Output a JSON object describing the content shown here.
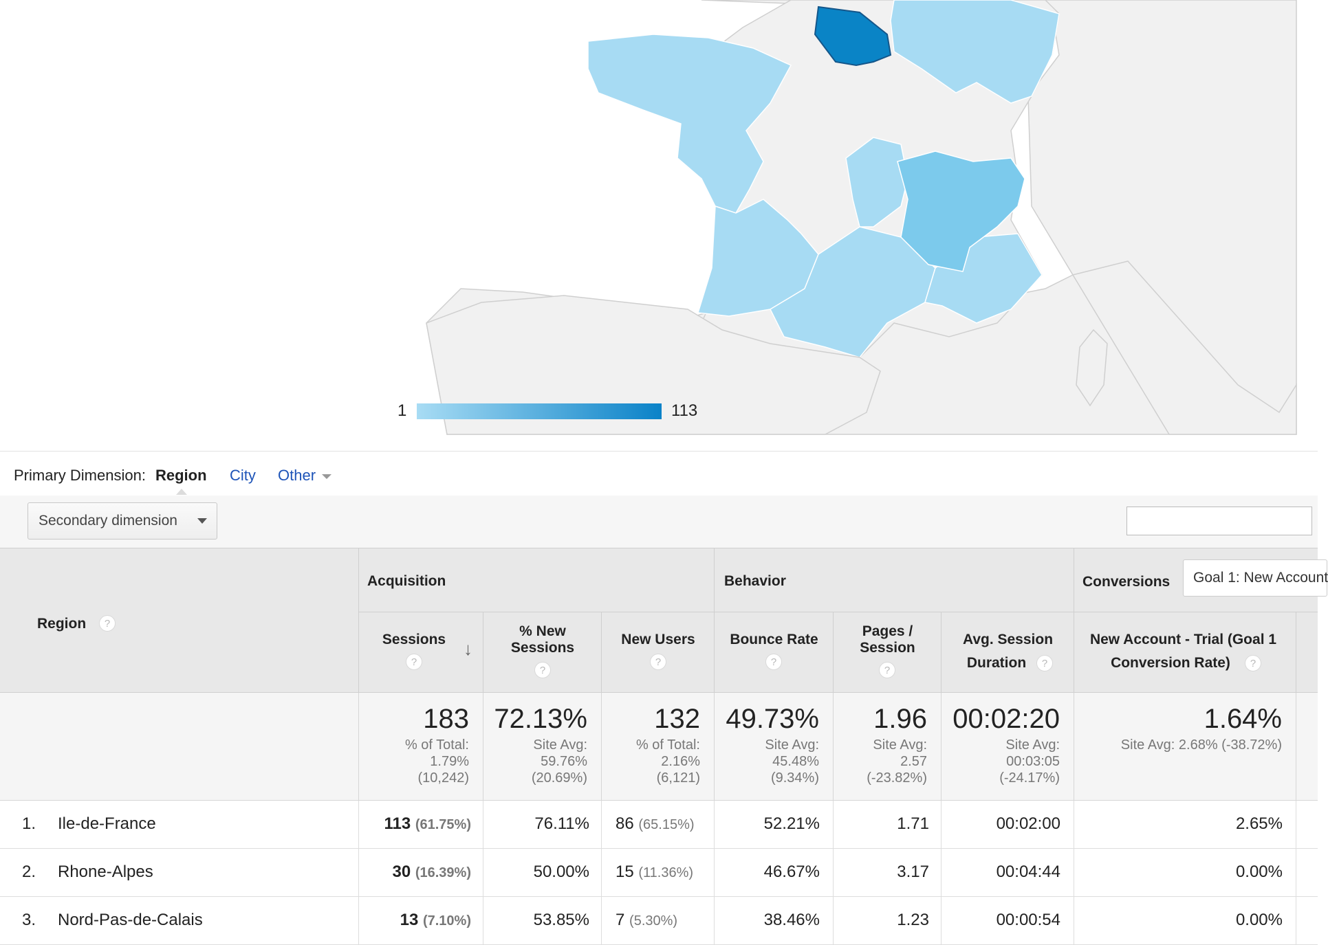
{
  "map": {
    "legend_min": "1",
    "legend_max": "113",
    "regions": [
      {
        "name": "Ile-de-France",
        "value": 113,
        "color": "#0a84c6"
      },
      {
        "name": "Rhone-Alpes",
        "value": 30,
        "color": "#7ccaec"
      },
      {
        "name": "Nord-Pas-de-Calais",
        "value": 13,
        "color": "#a6dbf3"
      }
    ],
    "colors": {
      "low": "#a8dcf4",
      "high": "#0a82c8",
      "land": "#f1f1f1",
      "border": "#c9c9c9"
    }
  },
  "primary_dimension": {
    "label": "Primary Dimension:",
    "active": "Region",
    "links": [
      "City",
      "Other"
    ]
  },
  "secondary_dimension": {
    "label": "Secondary dimension"
  },
  "table": {
    "first_column": "Region",
    "groups": {
      "acquisition": "Acquisition",
      "behavior": "Behavior",
      "conversions": "Conversions"
    },
    "goal_select": "Goal 1: New Account",
    "columns": {
      "sessions": "Sessions",
      "new_sessions": [
        "% New",
        "Sessions"
      ],
      "new_users": "New Users",
      "bounce_rate": "Bounce Rate",
      "pages_session": [
        "Pages /",
        "Session"
      ],
      "avg_duration": [
        "Avg. Session",
        "Duration"
      ],
      "conversion": [
        "New Account - Trial (Goal 1",
        "Conversion Rate)"
      ]
    },
    "help_glyph": "?",
    "sort_glyph": "↓",
    "totals": {
      "sessions": {
        "value": "183",
        "sub": [
          "% of Total:",
          "1.79%",
          "(10,242)"
        ]
      },
      "new_sessions": {
        "value": "72.13%",
        "sub": [
          "Site Avg:",
          "59.76%",
          "(20.69%)"
        ]
      },
      "new_users": {
        "value": "132",
        "sub": [
          "% of Total:",
          "2.16%",
          "(6,121)"
        ]
      },
      "bounce_rate": {
        "value": "49.73%",
        "sub": [
          "Site Avg:",
          "45.48%",
          "(9.34%)"
        ]
      },
      "pages_session": {
        "value": "1.96",
        "sub": [
          "Site Avg:",
          "2.57",
          "(-23.82%)"
        ]
      },
      "avg_duration": {
        "value": "00:02:20",
        "sub": [
          "Site Avg:",
          "00:03:05",
          "(-24.17%)"
        ]
      },
      "conversion": {
        "value": "1.64%",
        "sub": [
          "Site Avg: 2.68% (-38.72%)"
        ]
      }
    },
    "rows": [
      {
        "idx": "1.",
        "region": "Ile-de-France",
        "sessions": "113",
        "sessions_pct": "(61.75%)",
        "new_sessions": "76.11%",
        "new_users": "86",
        "new_users_pct": "(65.15%)",
        "bounce": "52.21%",
        "pages": "1.71",
        "duration": "00:02:00",
        "conv": "2.65%"
      },
      {
        "idx": "2.",
        "region": "Rhone-Alpes",
        "sessions": "30",
        "sessions_pct": "(16.39%)",
        "new_sessions": "50.00%",
        "new_users": "15",
        "new_users_pct": "(11.36%)",
        "bounce": "46.67%",
        "pages": "3.17",
        "duration": "00:04:44",
        "conv": "0.00%"
      },
      {
        "idx": "3.",
        "region": "Nord-Pas-de-Calais",
        "sessions": "13",
        "sessions_pct": "(7.10%)",
        "new_sessions": "53.85%",
        "new_users": "7",
        "new_users_pct": "(5.30%)",
        "bounce": "38.46%",
        "pages": "1.23",
        "duration": "00:00:54",
        "conv": "0.00%"
      }
    ]
  }
}
